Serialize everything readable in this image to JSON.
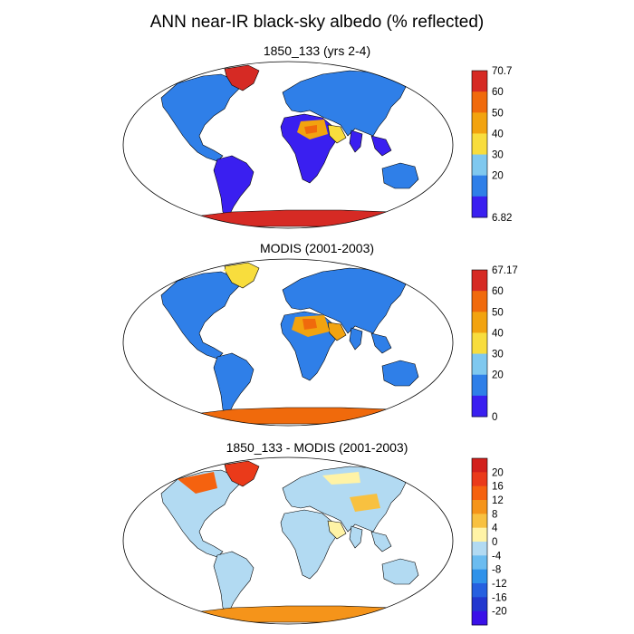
{
  "figure": {
    "title": "ANN near-IR black-sky albedo (% reflected)"
  },
  "panels": [
    {
      "id": "model",
      "title": "1850_133 (yrs 2-4)",
      "colorbar": {
        "labels": [
          "70.7",
          "60",
          "50",
          "40",
          "30",
          "20",
          "6.82"
        ],
        "colors": [
          "#d62a24",
          "#f06a0c",
          "#f2a30f",
          "#f8dd3d",
          "#7fc8ef",
          "#2f7fe8",
          "#3a1ff0"
        ],
        "min": 6.82,
        "max": 70.7
      }
    },
    {
      "id": "obs",
      "title": "MODIS (2001-2003)",
      "colorbar": {
        "labels": [
          "67.17",
          "60",
          "50",
          "40",
          "30",
          "20",
          "0"
        ],
        "colors": [
          "#d62a24",
          "#f06a0c",
          "#f2a30f",
          "#f8dd3d",
          "#7fc8ef",
          "#2f7fe8",
          "#3a1ff0"
        ],
        "min": 0,
        "max": 67.17
      }
    },
    {
      "id": "diff",
      "title": "1850_133 - MODIS (2001-2003)",
      "colorbar": {
        "labels": [
          "20",
          "16",
          "12",
          "8",
          "4",
          "0",
          "-4",
          "-8",
          "-12",
          "-16",
          "-20"
        ],
        "colors": [
          "#d2201c",
          "#ea3a1a",
          "#f5620f",
          "#f5941a",
          "#f8c140",
          "#fff3a6",
          "#b2daf2",
          "#6bbcf0",
          "#2f92ea",
          "#2660e0",
          "#2238cf",
          "#3a10e8"
        ]
      }
    }
  ]
}
